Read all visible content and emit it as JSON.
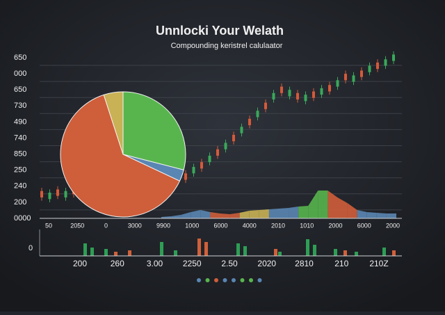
{
  "header": {
    "title": "Unnlocki Your Welath",
    "subtitle": "Compounding keristrel calulaator"
  },
  "left_labels": [
    "650",
    "000",
    "650",
    "730",
    "490",
    "740",
    "850",
    "250",
    "240",
    "200",
    "0000"
  ],
  "bottom_labels": [
    "50",
    "2050",
    "0",
    "3000",
    "9900",
    "1000",
    "6000",
    "4000",
    "2010",
    "1010",
    "2000",
    "6000",
    "2000"
  ],
  "lower_left_label": "0",
  "lower_labels": [
    "200",
    "260",
    "3.00",
    "2250",
    "2.50",
    "2020",
    "2810",
    "210",
    "210Z"
  ],
  "pie": {
    "slices": [
      {
        "value": 29,
        "color": "#58b54e"
      },
      {
        "value": 3,
        "color": "#5a86b3"
      },
      {
        "value": 63,
        "color": "#cf5e3a"
      },
      {
        "value": 5,
        "color": "#c9b155"
      }
    ]
  },
  "candles": {
    "ylim": [
      0,
      100
    ],
    "up_color": "#3aa85a",
    "down_color": "#d45a3a",
    "items": [
      [
        17,
        13,
        19,
        11
      ],
      [
        12,
        16,
        18,
        10
      ],
      [
        18,
        14,
        20,
        12
      ],
      [
        13,
        17,
        19,
        11
      ],
      [
        19,
        15,
        21,
        13
      ],
      [
        16,
        20,
        22,
        14
      ],
      [
        19,
        15,
        21,
        13
      ],
      [
        17,
        21,
        23,
        15
      ],
      [
        22,
        18,
        24,
        16
      ],
      [
        17,
        21,
        23,
        15
      ],
      [
        23,
        19,
        25,
        17
      ],
      [
        20,
        24,
        26,
        18
      ],
      [
        23,
        19,
        25,
        17
      ],
      [
        21,
        25,
        27,
        19
      ],
      [
        26,
        22,
        28,
        20
      ],
      [
        21,
        25,
        27,
        19
      ],
      [
        26,
        22,
        28,
        20
      ],
      [
        23,
        27,
        29,
        21
      ],
      [
        28,
        24,
        30,
        22
      ],
      [
        28,
        32,
        34,
        26
      ],
      [
        35,
        31,
        37,
        29
      ],
      [
        35,
        39,
        41,
        33
      ],
      [
        43,
        39,
        45,
        37
      ],
      [
        43,
        47,
        49,
        41
      ],
      [
        52,
        48,
        54,
        46
      ],
      [
        53,
        57,
        59,
        51
      ],
      [
        62,
        58,
        64,
        56
      ],
      [
        63,
        67,
        69,
        61
      ],
      [
        72,
        68,
        74,
        66
      ],
      [
        74,
        78,
        80,
        72
      ],
      [
        82,
        78,
        84,
        76
      ],
      [
        76,
        80,
        82,
        74
      ],
      [
        78,
        74,
        80,
        72
      ],
      [
        73,
        77,
        79,
        71
      ],
      [
        79,
        75,
        81,
        73
      ],
      [
        77,
        81,
        83,
        75
      ],
      [
        83,
        79,
        85,
        77
      ],
      [
        82,
        86,
        88,
        80
      ],
      [
        90,
        86,
        92,
        84
      ],
      [
        85,
        89,
        91,
        83
      ],
      [
        92,
        88,
        94,
        86
      ],
      [
        91,
        95,
        97,
        89
      ],
      [
        97,
        93,
        99,
        91
      ],
      [
        95,
        99,
        101,
        93
      ],
      [
        98,
        102,
        104,
        96
      ]
    ]
  },
  "area": {
    "values": [
      2,
      3,
      5,
      9,
      12,
      9,
      7,
      6,
      8,
      11,
      12,
      13,
      14,
      15,
      17,
      18,
      40,
      40,
      30,
      22,
      12,
      9,
      8,
      7,
      7
    ],
    "colors": [
      "#5a86b3",
      "#5a86b3",
      "#5a86b3",
      "#5a86b3",
      "#5a86b3",
      "#cf5e3a",
      "#cf5e3a",
      "#cf5e3a",
      "#c9b155",
      "#c9b155",
      "#c9b155",
      "#5a86b3",
      "#5a86b3",
      "#5a86b3",
      "#58b54e",
      "#58b54e",
      "#58b54e",
      "#cf5e3a",
      "#cf5e3a",
      "#cf5e3a",
      "#5a86b3",
      "#5a86b3",
      "#5a86b3",
      "#5a86b3"
    ]
  },
  "volume": [
    {
      "color": "#2e9e55",
      "values": [
        0,
        0,
        0,
        0,
        0,
        0,
        18,
        12,
        0,
        10,
        0,
        0,
        0,
        0,
        0,
        0,
        0,
        20,
        0,
        8,
        0,
        0,
        0,
        0,
        0,
        0,
        0,
        0,
        18,
        14,
        0,
        0,
        0,
        0,
        6,
        0,
        0,
        0,
        24,
        16,
        0,
        0,
        10,
        0,
        0,
        6,
        0,
        0,
        0,
        12,
        0,
        0
      ]
    },
    {
      "color": "#d0603a",
      "values": [
        0,
        0,
        0,
        0,
        0,
        0,
        0,
        0,
        0,
        0,
        6,
        0,
        8,
        0,
        0,
        0,
        0,
        0,
        0,
        0,
        0,
        0,
        25,
        20,
        0,
        0,
        0,
        0,
        0,
        0,
        0,
        0,
        0,
        10,
        0,
        0,
        0,
        0,
        0,
        0,
        0,
        0,
        0,
        8,
        0,
        0,
        0,
        0,
        0,
        0,
        8,
        0
      ]
    }
  ],
  "dots": [
    "#5a86b3",
    "#58b54e",
    "#cf5e3a",
    "#5a86b3",
    "#5a86b3",
    "#58b54e",
    "#58b54e",
    "#5a86b3"
  ]
}
